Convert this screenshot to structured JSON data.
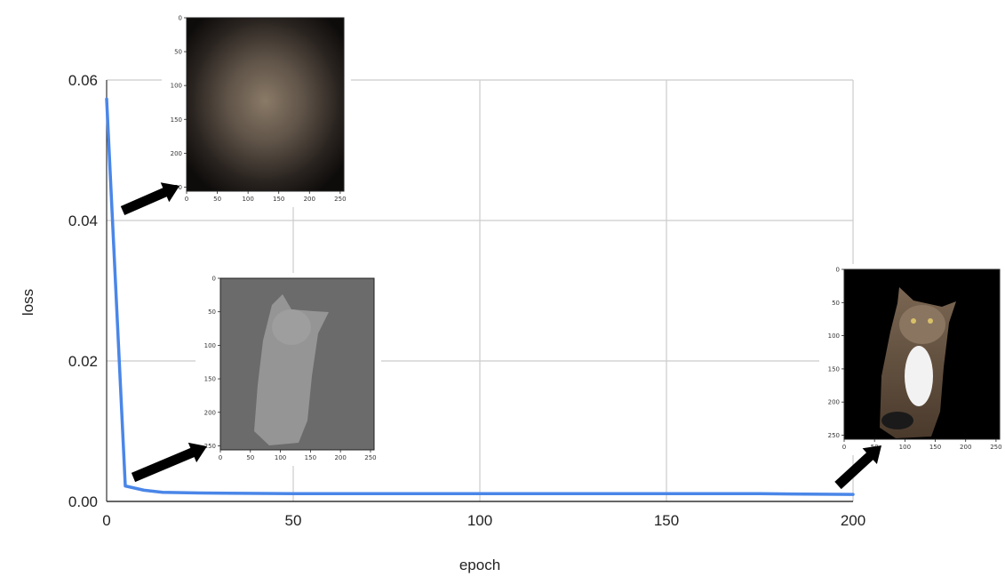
{
  "chart_data": {
    "type": "line",
    "xlabel": "epoch",
    "ylabel": "loss",
    "xlim": [
      0,
      200
    ],
    "ylim": [
      0,
      0.06
    ],
    "x_ticks": [
      0,
      50,
      100,
      150,
      200
    ],
    "y_ticks": [
      0.0,
      0.02,
      0.04,
      0.06
    ],
    "x_tick_labels": [
      "0",
      "50",
      "100",
      "150",
      "200"
    ],
    "y_tick_labels": [
      "0.00",
      "0.02",
      "0.04",
      "0.06"
    ],
    "grid": true,
    "series": [
      {
        "color": "#4a86e8",
        "x": [
          0,
          5,
          10,
          15,
          25,
          50,
          75,
          100,
          125,
          150,
          175,
          200
        ],
        "y": [
          0.0573,
          0.0022,
          0.0016,
          0.0013,
          0.0012,
          0.0011,
          0.0011,
          0.0011,
          0.0011,
          0.0011,
          0.0011,
          0.001
        ]
      }
    ],
    "insets": [
      {
        "name": "inset-early",
        "content": "blurry-brown-blob",
        "x_tick_labels": [
          "0",
          "50",
          "100",
          "150",
          "200",
          "250"
        ],
        "y_tick_labels": [
          "0",
          "50",
          "100",
          "150",
          "200",
          "250"
        ],
        "points_to_epoch": 0
      },
      {
        "name": "inset-mid",
        "content": "faded-gray-cat",
        "x_tick_labels": [
          "0",
          "50",
          "100",
          "150",
          "200",
          "250"
        ],
        "y_tick_labels": [
          "0",
          "50",
          "100",
          "150",
          "200",
          "250"
        ],
        "points_to_epoch": 5
      },
      {
        "name": "inset-final",
        "content": "sharp-cat",
        "x_tick_labels": [
          "0",
          "50",
          "100",
          "150",
          "200",
          "250"
        ],
        "y_tick_labels": [
          "0",
          "50",
          "100",
          "150",
          "200",
          "250"
        ],
        "points_to_epoch": 200
      }
    ]
  }
}
